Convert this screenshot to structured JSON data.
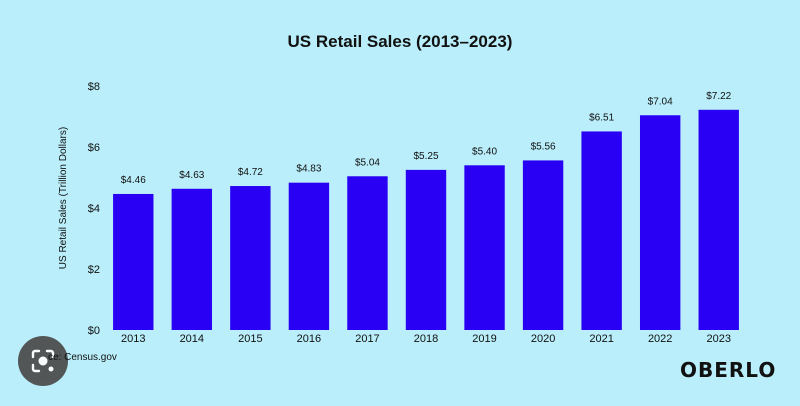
{
  "chart_data": {
    "type": "bar",
    "title": "US Retail Sales (2013–2023)",
    "ylabel": "US Retail Sales (Trillion Dollars)",
    "xlabel": "",
    "categories": [
      "2013",
      "2014",
      "2015",
      "2016",
      "2017",
      "2018",
      "2019",
      "2020",
      "2021",
      "2022",
      "2023"
    ],
    "values": [
      4.46,
      4.63,
      4.72,
      4.83,
      5.04,
      5.25,
      5.4,
      5.56,
      6.51,
      7.04,
      7.22
    ],
    "value_labels": [
      "$4.46",
      "$4.63",
      "$4.72",
      "$4.83",
      "$5.04",
      "$5.25",
      "$5.40",
      "$5.56",
      "$6.51",
      "$7.04",
      "$7.22"
    ],
    "ylim": [
      0,
      8
    ],
    "yticks": [
      0,
      2,
      4,
      6,
      8
    ],
    "ytick_labels": [
      "$0",
      "$2",
      "$4",
      "$6",
      "$8"
    ],
    "grid": false,
    "legend": "none",
    "bar_color": "#2a00f5",
    "background_color": "#b9eefa"
  },
  "footer": {
    "source_text": "ce: Census.gov",
    "logo_text": "OBERLO"
  },
  "icons": {
    "lens": "lens-search-icon"
  }
}
